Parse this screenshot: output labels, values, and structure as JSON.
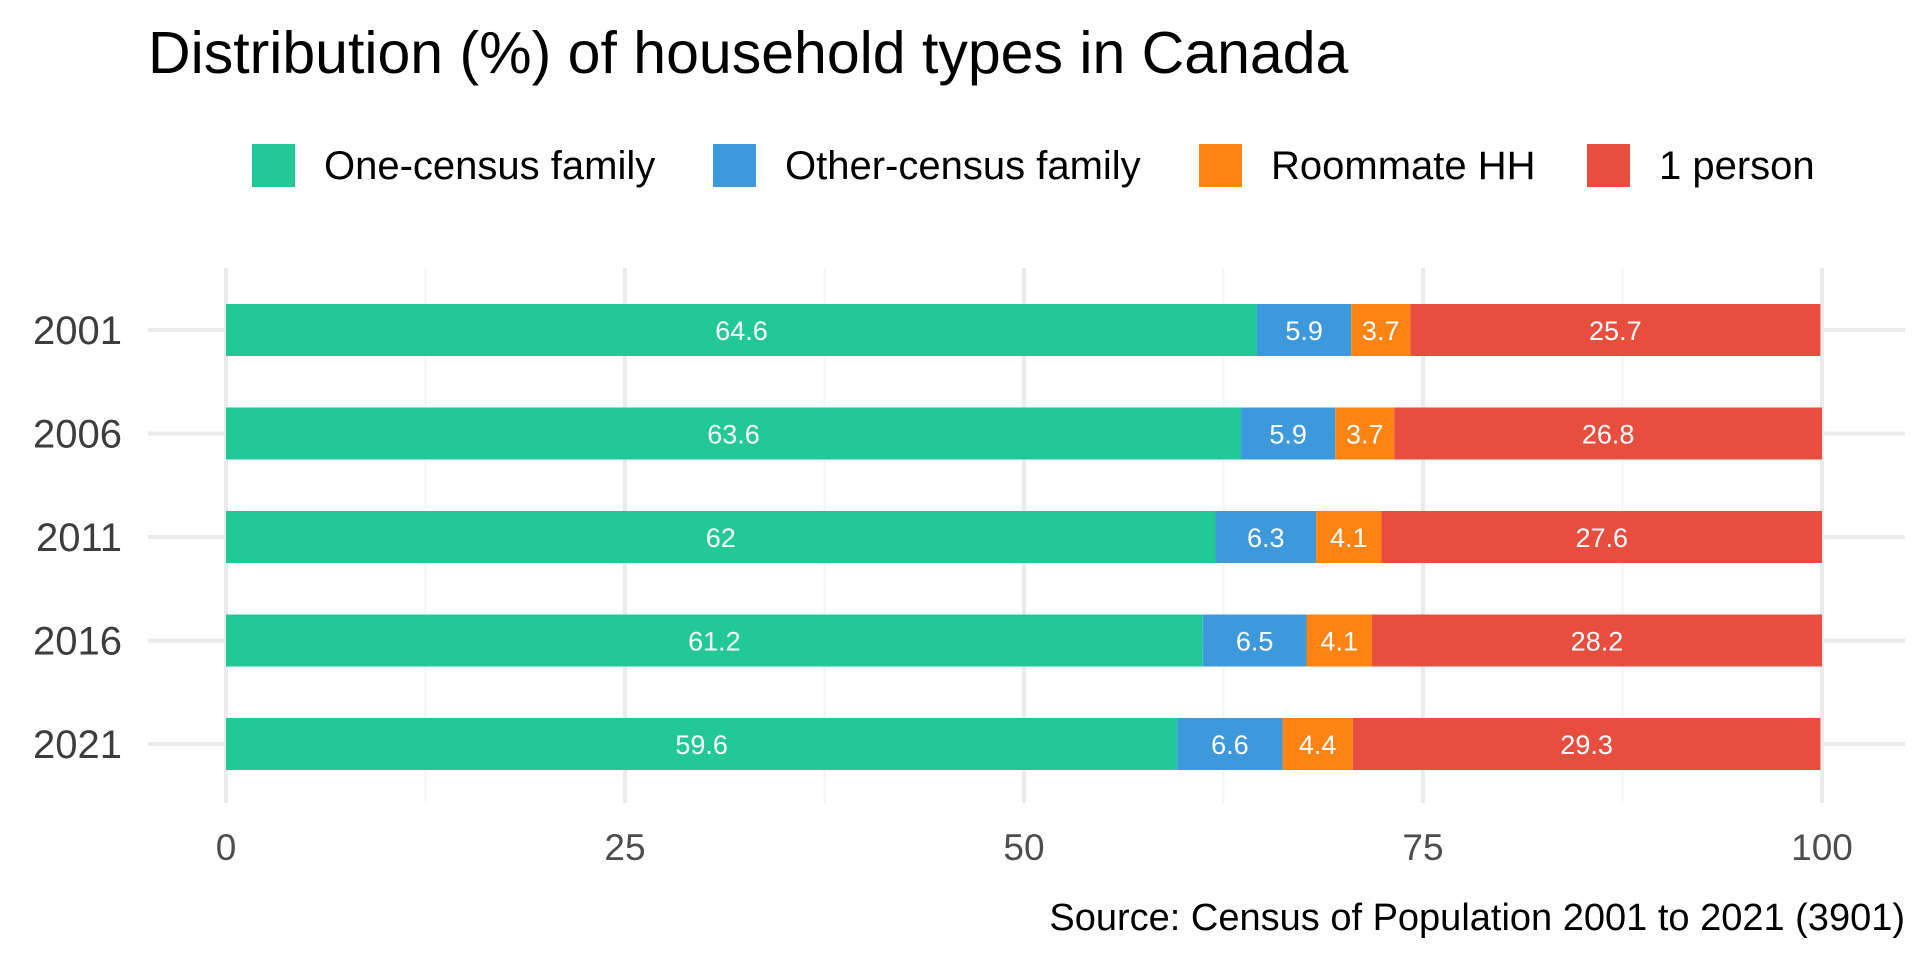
{
  "chart_data": {
    "type": "bar",
    "orientation": "horizontal",
    "stacked": true,
    "title": "Distribution (%) of household types in Canada",
    "caption": "Source: Census of Population 2001 to 2021 (3901)",
    "xlabel": "",
    "ylabel": "",
    "categories": [
      "2001",
      "2006",
      "2011",
      "2016",
      "2021"
    ],
    "series": [
      {
        "name": "One-census family",
        "color": "#22c997",
        "values": [
          64.6,
          63.6,
          62,
          61.2,
          59.6
        ],
        "labels": [
          "64.6",
          "63.6",
          "62",
          "61.2",
          "59.6"
        ]
      },
      {
        "name": "Other-census family",
        "color": "#3d99dc",
        "values": [
          5.9,
          5.9,
          6.3,
          6.5,
          6.6
        ],
        "labels": [
          "5.9",
          "5.9",
          "6.3",
          "6.5",
          "6.6"
        ]
      },
      {
        "name": "Roommate HH",
        "color": "#fd8413",
        "values": [
          3.7,
          3.7,
          4.1,
          4.1,
          4.4
        ],
        "labels": [
          "3.7",
          "3.7",
          "4.1",
          "4.1",
          "4.4"
        ]
      },
      {
        "name": "1 person",
        "color": "#e84e3e",
        "values": [
          25.7,
          26.8,
          27.6,
          28.2,
          29.3
        ],
        "labels": [
          "25.7",
          "26.8",
          "27.6",
          "28.2",
          "29.3"
        ]
      }
    ],
    "xlim": [
      0,
      100
    ],
    "xticks": [
      0,
      25,
      50,
      75,
      100
    ],
    "xtick_labels": [
      "0",
      "25",
      "50",
      "75",
      "100"
    ],
    "grid": true,
    "legend_position": "top"
  }
}
